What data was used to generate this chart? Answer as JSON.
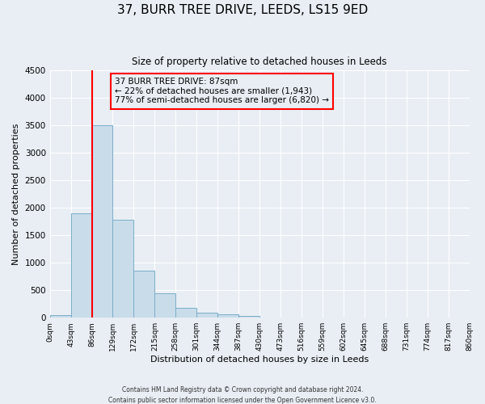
{
  "title": "37, BURR TREE DRIVE, LEEDS, LS15 9ED",
  "subtitle": "Size of property relative to detached houses in Leeds",
  "xlabel": "Distribution of detached houses by size in Leeds",
  "ylabel": "Number of detached properties",
  "bin_edges": [
    0,
    43,
    86,
    129,
    172,
    215,
    258,
    301,
    344,
    387,
    430,
    473,
    516,
    559,
    602,
    645,
    688,
    731,
    774,
    817,
    860
  ],
  "bin_labels": [
    "0sqm",
    "43sqm",
    "86sqm",
    "129sqm",
    "172sqm",
    "215sqm",
    "258sqm",
    "301sqm",
    "344sqm",
    "387sqm",
    "430sqm",
    "473sqm",
    "516sqm",
    "559sqm",
    "602sqm",
    "645sqm",
    "688sqm",
    "731sqm",
    "774sqm",
    "817sqm",
    "860sqm"
  ],
  "bar_heights": [
    50,
    1900,
    3500,
    1780,
    850,
    450,
    175,
    90,
    55,
    30,
    0,
    0,
    0,
    0,
    0,
    0,
    0,
    0,
    0,
    0
  ],
  "bar_color": "#c9dcea",
  "bar_edge_color": "#7aaec8",
  "property_line_x": 86,
  "property_line_color": "red",
  "ylim": [
    0,
    4500
  ],
  "yticks": [
    0,
    500,
    1000,
    1500,
    2000,
    2500,
    3000,
    3500,
    4000,
    4500
  ],
  "annotation_title": "37 BURR TREE DRIVE: 87sqm",
  "annotation_line1": "← 22% of detached houses are smaller (1,943)",
  "annotation_line2": "77% of semi-detached houses are larger (6,820) →",
  "annotation_box_color": "red",
  "background_color": "#e8eef4",
  "plot_bg_color": "#e8eef4",
  "grid_color": "#ffffff",
  "footer1": "Contains HM Land Registry data © Crown copyright and database right 2024.",
  "footer2": "Contains public sector information licensed under the Open Government Licence v3.0."
}
